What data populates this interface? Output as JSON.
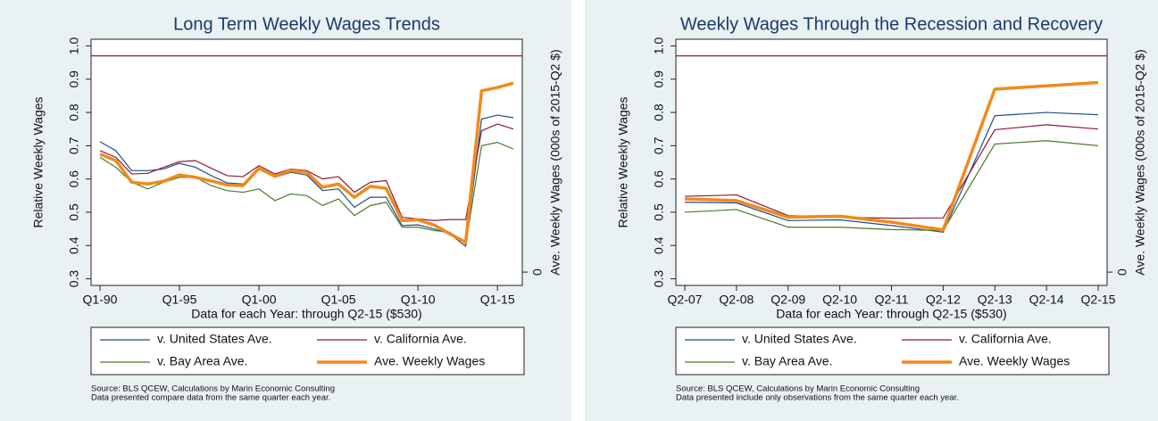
{
  "chart_data": [
    {
      "type": "line",
      "title": "Long Term Weekly Wages Trends",
      "x_label": "Data for each Year: through Q2-15 ($530)",
      "y_label": "Relative Weekly Wages",
      "y2_label": "Ave. Weekly Wages (000s of 2015-Q2 $)",
      "categories": [
        "Q1-90",
        null,
        null,
        null,
        null,
        "Q1-95",
        null,
        null,
        null,
        null,
        "Q1-00",
        null,
        null,
        null,
        null,
        "Q1-05",
        null,
        null,
        null,
        null,
        "Q1-10",
        null,
        null,
        null,
        null,
        "Q1-15",
        null
      ],
      "series": [
        {
          "name": "v. United States Ave.",
          "color": "#1f4e8c",
          "line_width": 1.2,
          "values": [
            0.712,
            0.685,
            0.625,
            0.625,
            0.63,
            0.647,
            0.635,
            0.61,
            0.588,
            0.585,
            0.635,
            0.605,
            0.62,
            0.612,
            0.565,
            0.57,
            0.515,
            0.545,
            0.545,
            0.46,
            0.462,
            0.45,
            0.435,
            0.398,
            0.78,
            0.792,
            0.784
          ]
        },
        {
          "name": "v. California Ave.",
          "color": "#8b1a3a",
          "line_width": 1.2,
          "values": [
            0.685,
            0.665,
            0.615,
            0.617,
            0.635,
            0.652,
            0.655,
            0.632,
            0.61,
            0.607,
            0.64,
            0.615,
            0.63,
            0.625,
            0.6,
            0.607,
            0.56,
            0.59,
            0.595,
            0.485,
            0.48,
            0.475,
            0.478,
            0.478,
            0.745,
            0.765,
            0.75
          ]
        },
        {
          "name": "v. Bay Area Ave.",
          "color": "#4a7a2a",
          "line_width": 1.2,
          "values": [
            0.665,
            0.635,
            0.59,
            0.57,
            0.59,
            0.605,
            0.605,
            0.58,
            0.565,
            0.56,
            0.57,
            0.535,
            0.555,
            0.55,
            0.52,
            0.54,
            0.49,
            0.52,
            0.53,
            0.455,
            0.455,
            0.445,
            0.44,
            0.405,
            0.7,
            0.71,
            0.69
          ]
        },
        {
          "name": "Ave. Weekly Wages",
          "color": "#f08a1c",
          "line_width": 3.5,
          "values": [
            0.675,
            0.655,
            0.59,
            0.585,
            0.593,
            0.612,
            0.605,
            0.594,
            0.582,
            0.58,
            0.632,
            0.608,
            0.626,
            0.62,
            0.575,
            0.585,
            0.545,
            0.578,
            0.572,
            0.475,
            0.477,
            0.462,
            0.435,
            0.41,
            0.865,
            0.875,
            0.888
          ]
        }
      ],
      "reference_line": {
        "value": 0.97,
        "color": "#8b1a3a"
      },
      "ylim": [
        0.28,
        1.02
      ],
      "yticks": [
        0.3,
        0.4,
        0.5,
        0.6,
        0.7,
        0.8,
        0.9,
        {
          "value": 1,
          "label": "1.0"
        }
      ],
      "y2lim": [
        -0.04,
        0.7
      ],
      "y2ticks": [
        0
      ],
      "notes": [
        "Source: BLS QCEW, Calculations by Marin Economic Consulting",
        "Data presented compare data from the same quarter each year."
      ]
    },
    {
      "type": "line",
      "title": "Weekly Wages Through the Recession and Recovery",
      "x_label": "Data for each Year: through Q2-15 ($530)",
      "y_label": "Relative Weekly Wages",
      "y2_label": "Ave. Weekly Wages (000s of 2015-Q2 $)",
      "categories": [
        "Q2-07",
        "Q2-08",
        "Q2-09",
        "Q2-10",
        "Q2-11",
        "Q2-12",
        "Q2-13",
        "Q2-14",
        "Q2-15"
      ],
      "series": [
        {
          "name": "v. United States Ave.",
          "color": "#1f4e8c",
          "line_width": 1.2,
          "values": [
            0.53,
            0.528,
            0.475,
            0.477,
            0.46,
            0.44,
            0.79,
            0.8,
            0.793
          ]
        },
        {
          "name": "v. California Ave.",
          "color": "#8b1a3a",
          "line_width": 1.2,
          "values": [
            0.548,
            0.552,
            0.49,
            0.485,
            0.482,
            0.483,
            0.748,
            0.763,
            0.75
          ]
        },
        {
          "name": "v. Bay Area Ave.",
          "color": "#4a7a2a",
          "line_width": 1.2,
          "values": [
            0.5,
            0.508,
            0.455,
            0.455,
            0.448,
            0.445,
            0.705,
            0.715,
            0.7
          ]
        },
        {
          "name": "Ave. Weekly Wages",
          "color": "#f08a1c",
          "line_width": 3.5,
          "values": [
            0.54,
            0.535,
            0.485,
            0.488,
            0.47,
            0.447,
            0.87,
            0.88,
            0.89
          ]
        }
      ],
      "reference_line": {
        "value": 0.97,
        "color": "#8b1a3a"
      },
      "ylim": [
        0.28,
        1.02
      ],
      "yticks": [
        0.3,
        0.4,
        0.5,
        0.6,
        0.7,
        0.8,
        0.9,
        {
          "value": 1,
          "label": "1.0"
        }
      ],
      "y2lim": [
        -0.04,
        0.7
      ],
      "y2ticks": [
        0
      ],
      "notes": [
        "Source: BLS QCEW, Calculations by Marin Economic Consulting",
        "Data presented include only observations from the same quarter each year."
      ]
    }
  ]
}
